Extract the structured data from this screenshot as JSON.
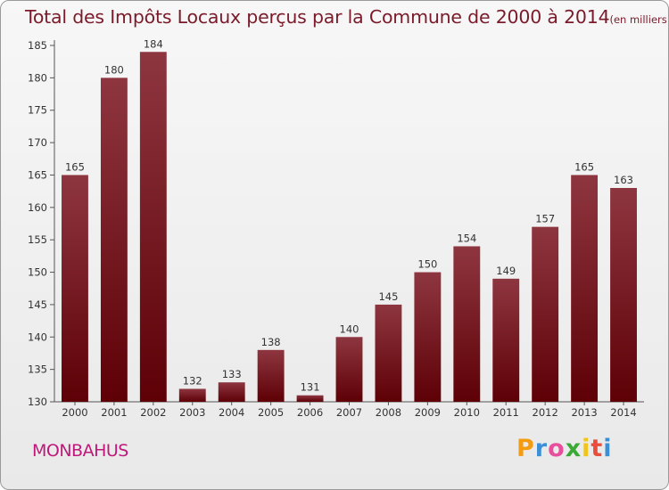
{
  "title": "Total des Impôts Locaux perçus par la Commune de 2000 à 2014",
  "subtitle": "(en milliers d'€)",
  "commune": "MONBAHUS",
  "logo": {
    "letters": [
      "P",
      "r",
      "o",
      "x",
      "i",
      "t",
      "i"
    ],
    "colors": [
      "#f39c12",
      "#3b8fd6",
      "#e94e9c",
      "#3aa935",
      "#f0c419",
      "#e94e3c",
      "#3b8fd6"
    ]
  },
  "colors": {
    "bar_top": "#8e3640",
    "bar_bottom": "#5e0006",
    "title": "#7a1a2a",
    "commune": "#c0177a"
  },
  "chart_data": {
    "type": "bar",
    "categories": [
      "2000",
      "2001",
      "2002",
      "2003",
      "2004",
      "2005",
      "2006",
      "2007",
      "2008",
      "2009",
      "2010",
      "2011",
      "2012",
      "2013",
      "2014"
    ],
    "values": [
      165,
      180,
      184,
      132,
      133,
      138,
      131,
      140,
      145,
      150,
      154,
      149,
      157,
      165,
      163
    ],
    "ylim": [
      130,
      185
    ],
    "yticks": [
      130,
      135,
      140,
      145,
      150,
      155,
      160,
      165,
      170,
      175,
      180,
      185
    ],
    "grid": false,
    "legend": "none"
  }
}
